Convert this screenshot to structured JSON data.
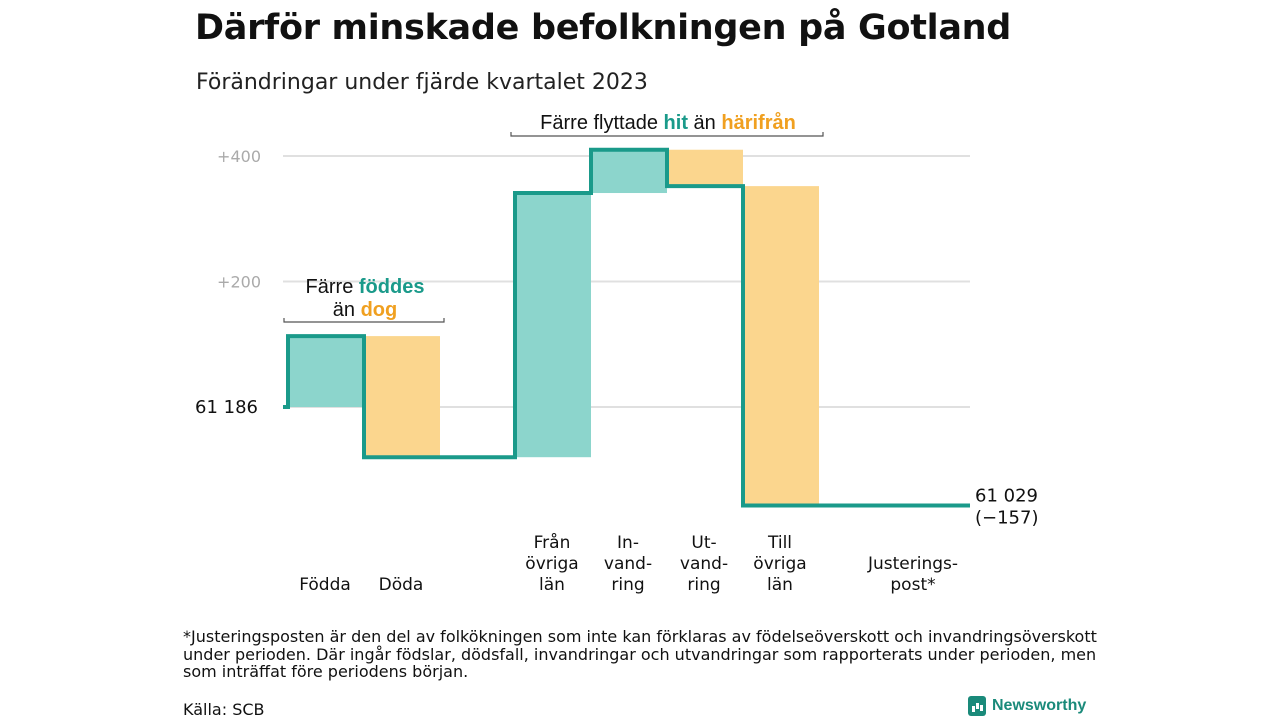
{
  "title": "Därför minskade befolkningen på Gotland",
  "subtitle": "Förändringar under fjärde kvartalet 2023",
  "annotations": {
    "births": {
      "prefix": "Färre",
      "teal": "föddes",
      "line2_prefix": "än",
      "orange": "dog"
    },
    "migration": {
      "prefix": "Färre flyttade",
      "teal": "hit",
      "middle": "än",
      "orange": "härifrån"
    }
  },
  "start_label": "61  186",
  "end_label": [
    "61 029",
    "(−157)"
  ],
  "footnote": "*Justeringsposten är den del av folkökningen som inte kan förklaras av födelseöverskott och invandringsöverskott under perioden. Där ingår födslar, dödsfall, invandringar och utvandringar som rapporterats under perioden, men som inträffat före periodens början.",
  "source": "Källa: SCB",
  "logo": "Newsworthy",
  "colors": {
    "teal_fill": "#8cd5cc",
    "teal_line": "#1a9a8a",
    "orange_fill": "#fbd68e",
    "grid": "#e0e0e0"
  },
  "chart_data": {
    "type": "waterfall",
    "baseline": 61186,
    "end_value": 61029,
    "net_change": -157,
    "ytick_labels": [
      "+200",
      "+400"
    ],
    "ytick_values": [
      200,
      400
    ],
    "ylim": [
      -180,
      445
    ],
    "steps": [
      {
        "label": [
          "Födda"
        ],
        "kind": "in",
        "start": 0,
        "end": 113
      },
      {
        "label": [
          "Döda"
        ],
        "kind": "out",
        "start": 113,
        "end": -80
      },
      {
        "label": [
          "Från",
          "övriga",
          "län"
        ],
        "kind": "in",
        "start": -80,
        "end": 341
      },
      {
        "label": [
          "In-",
          "vand-",
          "ring"
        ],
        "kind": "in",
        "start": 341,
        "end": 410
      },
      {
        "label": [
          "Ut-",
          "vand-",
          "ring"
        ],
        "kind": "out",
        "start": 410,
        "end": 352
      },
      {
        "label": [
          "Till",
          "övriga",
          "län"
        ],
        "kind": "out",
        "start": 352,
        "end": -157
      },
      {
        "label": [
          "Justerings-",
          "post*"
        ],
        "kind": "adjust",
        "start": -157,
        "end": -157
      }
    ]
  }
}
